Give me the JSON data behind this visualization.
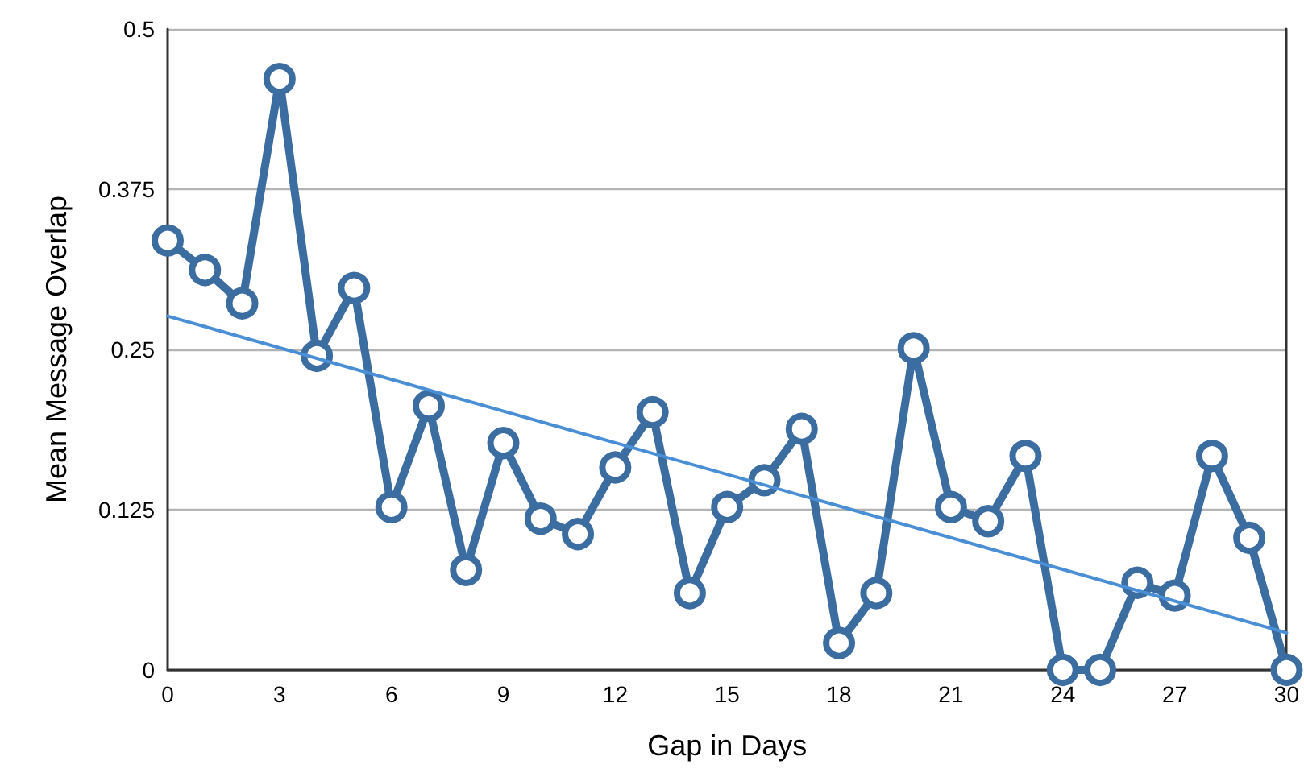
{
  "chart_data": {
    "type": "line",
    "xlabel": "Gap in Days",
    "ylabel": "Mean Message Overlap",
    "x": [
      0,
      1,
      2,
      3,
      4,
      5,
      6,
      7,
      8,
      9,
      10,
      11,
      12,
      13,
      14,
      15,
      16,
      17,
      18,
      19,
      20,
      21,
      22,
      23,
      24,
      25,
      26,
      27,
      28,
      29,
      30
    ],
    "xlim": [
      0,
      30
    ],
    "xticks": [
      0,
      3,
      6,
      9,
      12,
      15,
      18,
      21,
      24,
      27,
      30
    ],
    "ylim": [
      0,
      0.5
    ],
    "yticks": [
      0,
      0.125,
      0.25,
      0.375,
      0.5
    ],
    "series": [
      {
        "color": "#3c6da1",
        "marker": "circle",
        "values": [
          0.335,
          0.312,
          0.286,
          0.461,
          0.245,
          0.298,
          0.127,
          0.206,
          0.078,
          0.177,
          0.118,
          0.106,
          0.158,
          0.201,
          0.06,
          0.127,
          0.148,
          0.188,
          0.021,
          0.06,
          0.251,
          0.127,
          0.116,
          0.167,
          0,
          0,
          0.068,
          0.058,
          0.167,
          0.103,
          0
        ]
      },
      {
        "type": "line",
        "color": "#4a8fd6",
        "marker": "none",
        "x": [
          0,
          30
        ],
        "values": [
          0.276,
          0.029
        ]
      }
    ],
    "grid": "y"
  }
}
